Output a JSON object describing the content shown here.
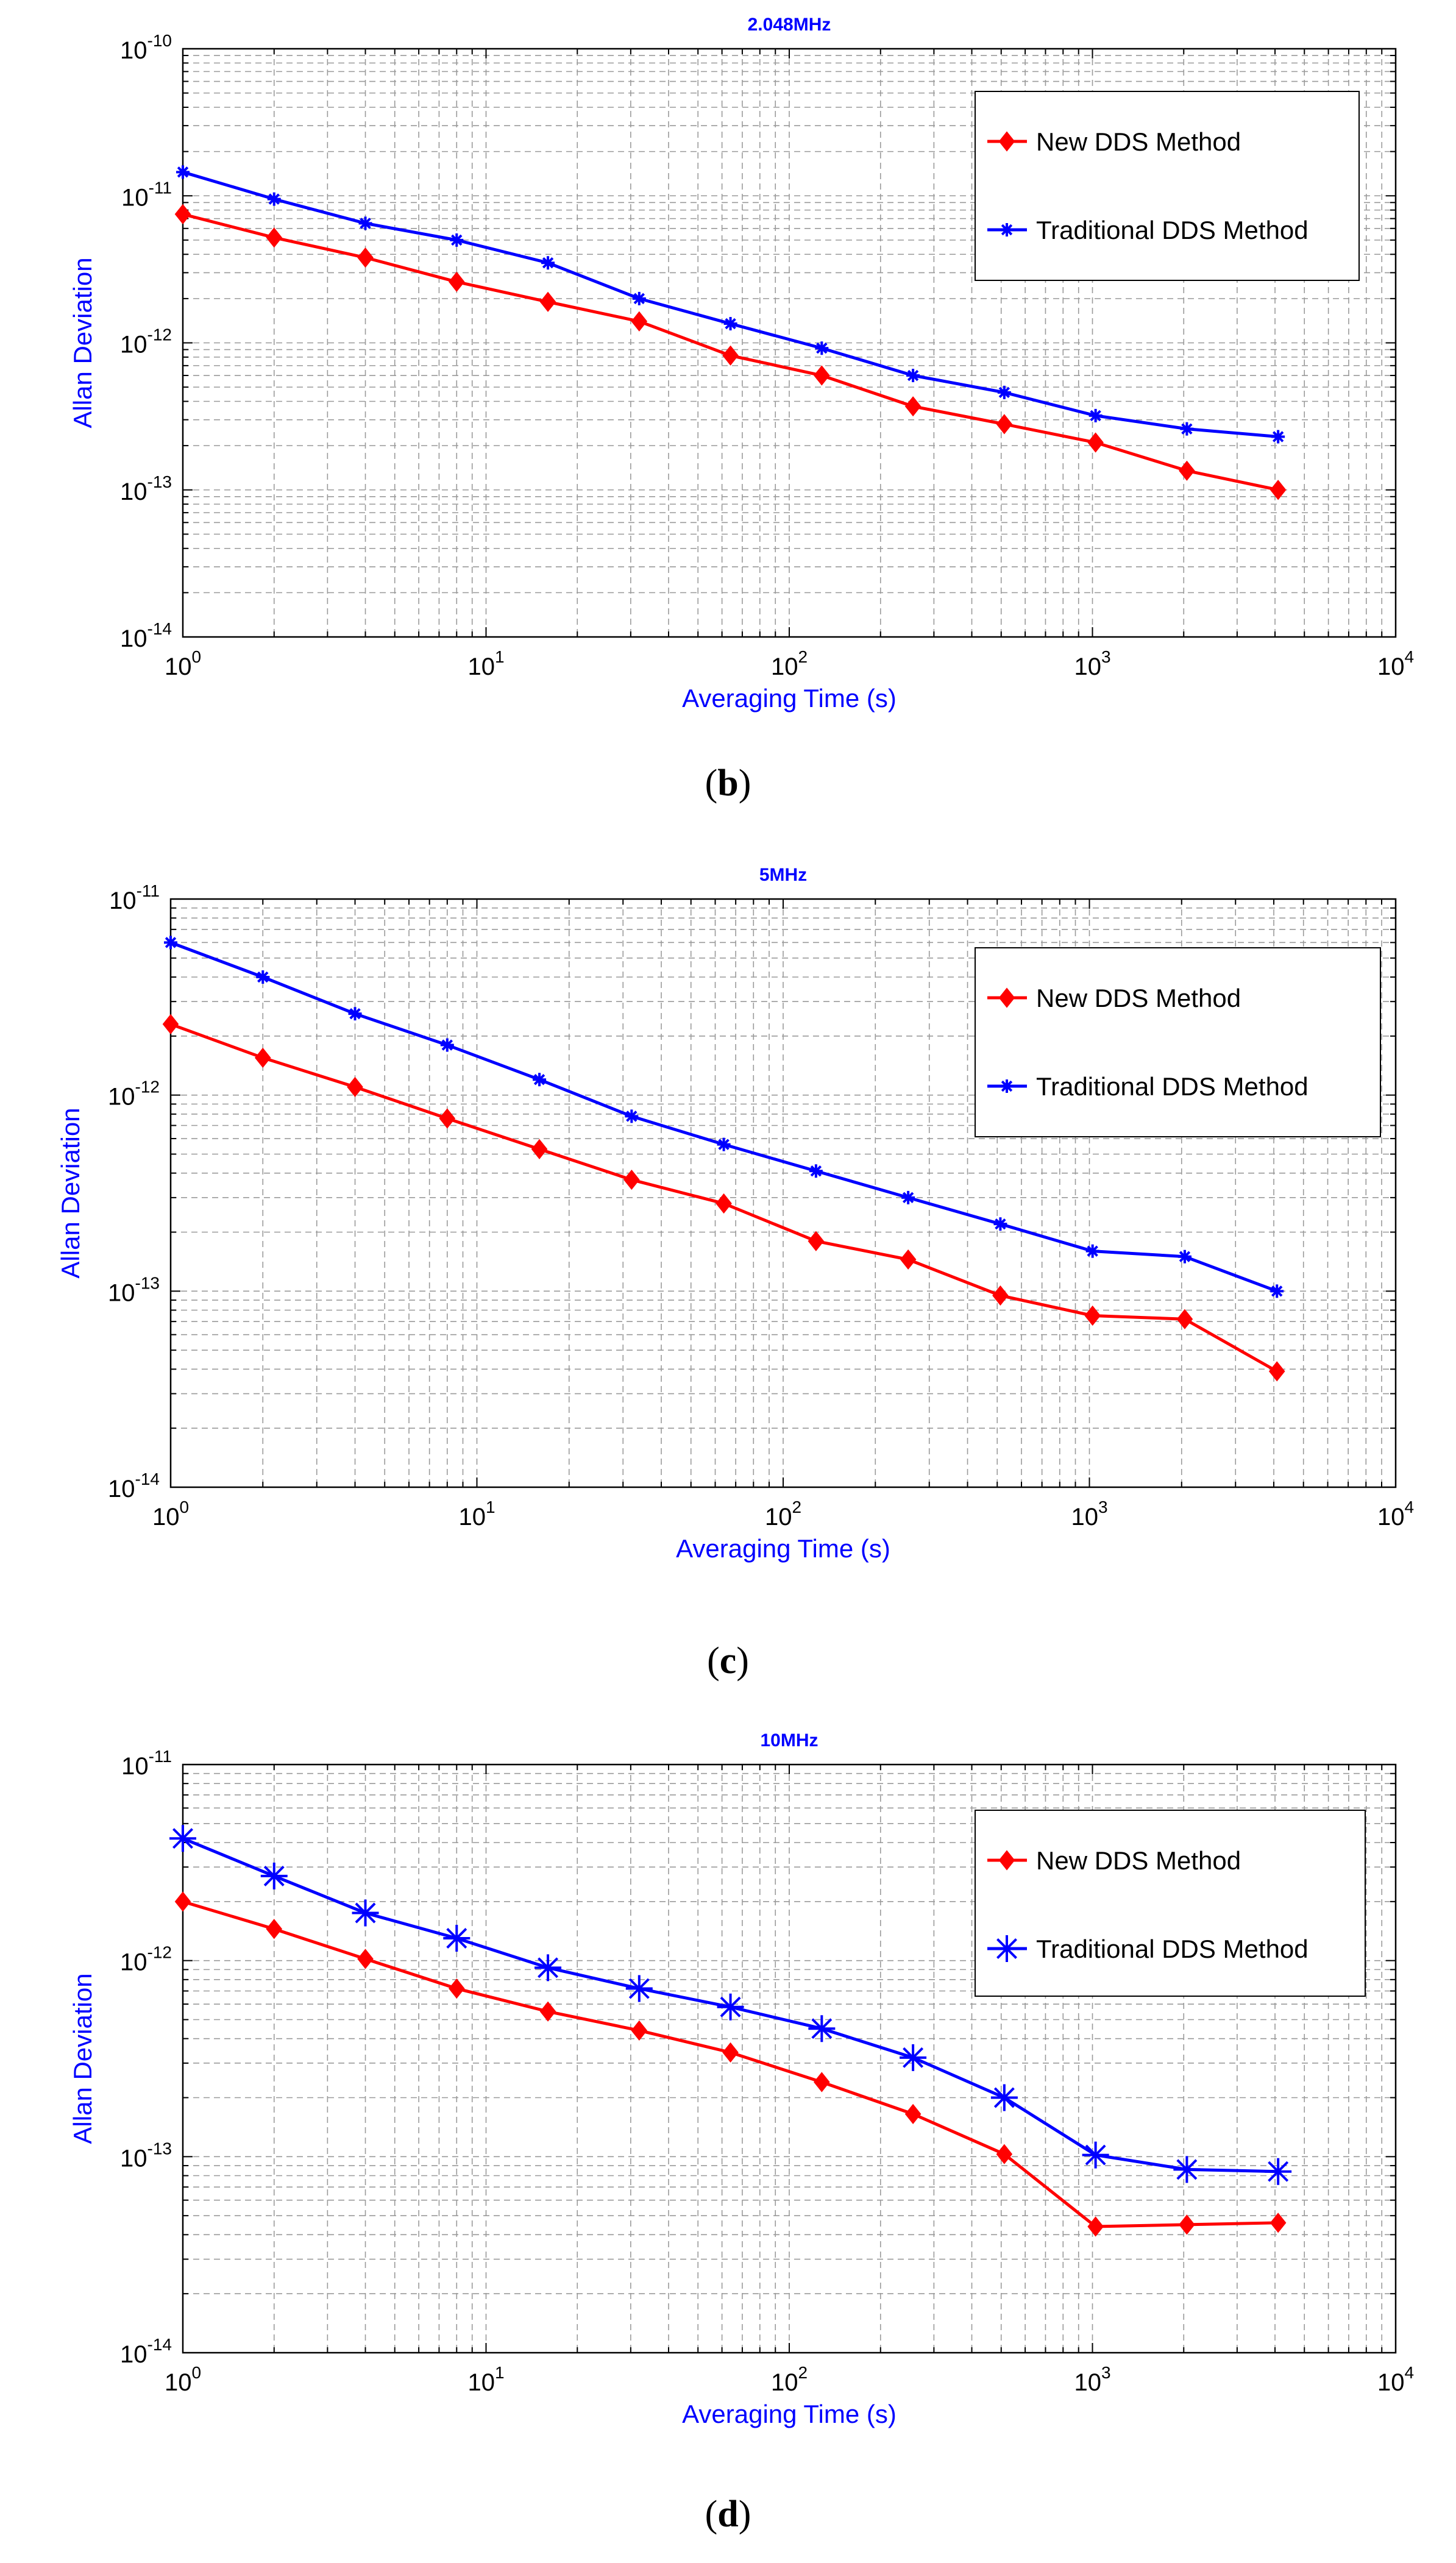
{
  "chart_data": [
    {
      "type": "line",
      "title": "2.048MHz",
      "xlabel": "Averaging Time (s)",
      "ylabel": "Allan Deviation",
      "x_scale": "log",
      "y_scale": "log",
      "xlim": [
        1,
        10000
      ],
      "ylim": [
        1e-14,
        1e-10
      ],
      "x_ticks": [
        {
          "base": "10",
          "exp": "0"
        },
        {
          "base": "10",
          "exp": "1"
        },
        {
          "base": "10",
          "exp": "2"
        },
        {
          "base": "10",
          "exp": "3"
        },
        {
          "base": "10",
          "exp": "4"
        }
      ],
      "y_ticks": [
        {
          "base": "10",
          "exp": "-14"
        },
        {
          "base": "10",
          "exp": "-13"
        },
        {
          "base": "10",
          "exp": "-12"
        },
        {
          "base": "10",
          "exp": "-11"
        },
        {
          "base": "10",
          "exp": "-10"
        }
      ],
      "grid": true,
      "legend_position": "top-right",
      "x": [
        1,
        2,
        4,
        8,
        16,
        32,
        64,
        128,
        256,
        512,
        1024,
        2048,
        4096
      ],
      "series": [
        {
          "name": "New DDS Method",
          "color": "#ff0000",
          "marker": "diamond",
          "values": [
            7.5e-12,
            5.2e-12,
            3.8e-12,
            2.6e-12,
            1.9e-12,
            1.4e-12,
            8.2e-13,
            6e-13,
            3.7e-13,
            2.8e-13,
            2.1e-13,
            1.35e-13,
            1e-13
          ]
        },
        {
          "name": "Traditional DDS Method",
          "color": "#0000ff",
          "marker": "star-small",
          "values": [
            1.45e-11,
            9.5e-12,
            6.5e-12,
            5e-12,
            3.5e-12,
            2e-12,
            1.35e-12,
            9.2e-13,
            6e-13,
            4.6e-13,
            3.2e-13,
            2.6e-13,
            2.3e-13
          ]
        }
      ]
    },
    {
      "type": "line",
      "title": "5MHz",
      "xlabel": "Averaging Time (s)",
      "ylabel": "Allan Deviation",
      "x_scale": "log",
      "y_scale": "log",
      "xlim": [
        1,
        10000
      ],
      "ylim": [
        1e-14,
        1e-11
      ],
      "x_ticks": [
        {
          "base": "10",
          "exp": "0"
        },
        {
          "base": "10",
          "exp": "1"
        },
        {
          "base": "10",
          "exp": "2"
        },
        {
          "base": "10",
          "exp": "3"
        },
        {
          "base": "10",
          "exp": "4"
        }
      ],
      "y_ticks": [
        {
          "base": "10",
          "exp": "-14"
        },
        {
          "base": "10",
          "exp": "-13"
        },
        {
          "base": "10",
          "exp": "-12"
        },
        {
          "base": "10",
          "exp": "-11"
        }
      ],
      "grid": true,
      "legend_position": "top-right",
      "x": [
        1,
        2,
        4,
        8,
        16,
        32,
        64,
        128,
        256,
        512,
        1024,
        2048,
        4096
      ],
      "series": [
        {
          "name": "New DDS Method",
          "color": "#ff0000",
          "marker": "diamond",
          "values": [
            2.3e-12,
            1.55e-12,
            1.1e-12,
            7.6e-13,
            5.3e-13,
            3.7e-13,
            2.8e-13,
            1.8e-13,
            1.45e-13,
            9.5e-14,
            7.5e-14,
            7.2e-14,
            3.9e-14
          ]
        },
        {
          "name": "Traditional DDS Method",
          "color": "#0000ff",
          "marker": "star-small",
          "values": [
            6e-12,
            4e-12,
            2.6e-12,
            1.8e-12,
            1.2e-12,
            7.8e-13,
            5.6e-13,
            4.1e-13,
            3e-13,
            2.2e-13,
            1.6e-13,
            1.5e-13,
            1e-13
          ]
        }
      ]
    },
    {
      "type": "line",
      "title": "10MHz",
      "xlabel": "Averaging Time (s)",
      "ylabel": "Allan Deviation",
      "x_scale": "log",
      "y_scale": "log",
      "xlim": [
        1,
        10000
      ],
      "ylim": [
        1e-14,
        1e-11
      ],
      "x_ticks": [
        {
          "base": "10",
          "exp": "0"
        },
        {
          "base": "10",
          "exp": "1"
        },
        {
          "base": "10",
          "exp": "2"
        },
        {
          "base": "10",
          "exp": "3"
        },
        {
          "base": "10",
          "exp": "4"
        }
      ],
      "y_ticks": [
        {
          "base": "10",
          "exp": "-14"
        },
        {
          "base": "10",
          "exp": "-13"
        },
        {
          "base": "10",
          "exp": "-12"
        },
        {
          "base": "10",
          "exp": "-11"
        }
      ],
      "grid": true,
      "legend_position": "top-right",
      "x": [
        1,
        2,
        4,
        8,
        16,
        32,
        64,
        128,
        256,
        512,
        1024,
        2048,
        4096
      ],
      "series": [
        {
          "name": "New DDS Method",
          "color": "#ff0000",
          "marker": "diamond",
          "values": [
            2e-12,
            1.45e-12,
            1.02e-12,
            7.2e-13,
            5.5e-13,
            4.4e-13,
            3.4e-13,
            2.4e-13,
            1.65e-13,
            1.03e-13,
            4.4e-14,
            4.5e-14,
            4.6e-14
          ]
        },
        {
          "name": "Traditional DDS Method",
          "color": "#0000ff",
          "marker": "star-large",
          "values": [
            4.2e-12,
            2.7e-12,
            1.75e-12,
            1.3e-12,
            9.2e-13,
            7.2e-13,
            5.8e-13,
            4.5e-13,
            3.2e-13,
            2e-13,
            1.02e-13,
            8.6e-14,
            8.4e-14
          ]
        }
      ]
    }
  ],
  "panels": {
    "b": {
      "letter": "b",
      "open": "(",
      "close": ")"
    },
    "c": {
      "letter": "c",
      "open": "(",
      "close": ")"
    },
    "d": {
      "letter": "d",
      "open": "(",
      "close": ")"
    }
  }
}
